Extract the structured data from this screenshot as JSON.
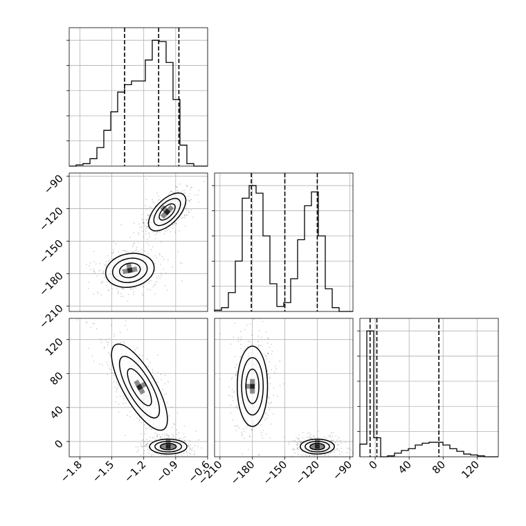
{
  "chart_data": {
    "type": "corner",
    "grid": true,
    "parameters": [
      {
        "range": [
          -1.9,
          -0.6
        ],
        "ticks": [
          -1.8,
          -1.5,
          -1.2,
          -0.9,
          -0.6
        ],
        "tick_labels": [
          "−1.8",
          "−1.5",
          "−1.2",
          "−0.9",
          "−0.6"
        ]
      },
      {
        "range": [
          -215,
          -87
        ],
        "ticks": [
          -210,
          -180,
          -150,
          -120,
          -90
        ],
        "tick_labels": [
          "−210",
          "−180",
          "−150",
          "−120",
          "−90"
        ]
      },
      {
        "range": [
          -18,
          145
        ],
        "ticks": [
          0,
          40,
          80,
          120
        ],
        "tick_labels": [
          "0",
          "40",
          "80",
          "120"
        ]
      }
    ],
    "histograms": [
      {
        "param": 0,
        "bin_edges": [
          -1.9,
          -1.835,
          -1.77,
          -1.705,
          -1.64,
          -1.575,
          -1.51,
          -1.445,
          -1.38,
          -1.315,
          -1.25,
          -1.185,
          -1.12,
          -1.055,
          -0.99,
          -0.925,
          -0.86,
          -0.795,
          -0.73,
          -0.665,
          -0.6
        ],
        "counts": [
          0,
          1,
          2,
          6,
          15,
          29,
          44,
          60,
          66,
          69,
          69,
          86,
          102,
          101,
          84,
          54,
          17,
          2,
          0,
          0
        ],
        "quantiles": [
          -1.38,
          -1.06,
          -0.87
        ]
      },
      {
        "param": 1,
        "bin_edges": [
          -215,
          -208.6,
          -202.2,
          -195.8,
          -189.4,
          -183,
          -176.6,
          -170.2,
          -163.8,
          -157.4,
          -151,
          -144.6,
          -138.2,
          -131.8,
          -125.4,
          -119,
          -112.6,
          -106.2,
          -99.8,
          -93.4,
          -87
        ],
        "counts": [
          1,
          3,
          15,
          40,
          90,
          100,
          94,
          60,
          22,
          4,
          7,
          26,
          57,
          84,
          95,
          60,
          18,
          3,
          0,
          0
        ],
        "quantiles": [
          -181,
          -150,
          -120
        ]
      },
      {
        "param": 2,
        "bin_edges": [
          -18,
          -9.85,
          -1.7,
          6.45,
          14.6,
          22.75,
          30.9,
          39.05,
          47.2,
          55.35,
          63.5,
          71.65,
          79.8,
          87.95,
          96.1,
          104.25,
          112.4,
          120.55,
          128.7,
          136.85,
          145
        ],
        "counts": [
          14,
          139,
          21,
          0,
          1,
          4,
          7,
          9,
          13,
          15,
          16,
          16,
          13,
          9,
          6,
          3,
          2,
          1,
          0,
          0
        ],
        "quantiles": [
          -6,
          2,
          75
        ]
      }
    ],
    "pairs": [
      {
        "x_param": 0,
        "y_param": 1,
        "modes": [
          {
            "center": [
              -0.98,
              -123
            ],
            "sx": 0.1,
            "sy": 10,
            "rho": 0.6,
            "n": 380
          },
          {
            "center": [
              -1.33,
              -177
            ],
            "sx": 0.13,
            "sy": 9,
            "rho": 0.15,
            "n": 360
          }
        ]
      },
      {
        "x_param": 0,
        "y_param": 2,
        "modes": [
          {
            "center": [
              -1.24,
              64
            ],
            "sx": 0.15,
            "sy": 29,
            "rho": -0.75,
            "n": 380
          },
          {
            "center": [
              -0.97,
              -6
            ],
            "sx": 0.1,
            "sy": 5,
            "rho": 0.0,
            "n": 360
          }
        ]
      },
      {
        "x_param": 1,
        "y_param": 2,
        "modes": [
          {
            "center": [
              -180,
              65
            ],
            "sx": 8,
            "sy": 27,
            "rho": 0.0,
            "n": 380
          },
          {
            "center": [
              -120,
              -6
            ],
            "sx": 9,
            "sy": 5,
            "rho": 0.0,
            "n": 360
          }
        ]
      }
    ]
  }
}
